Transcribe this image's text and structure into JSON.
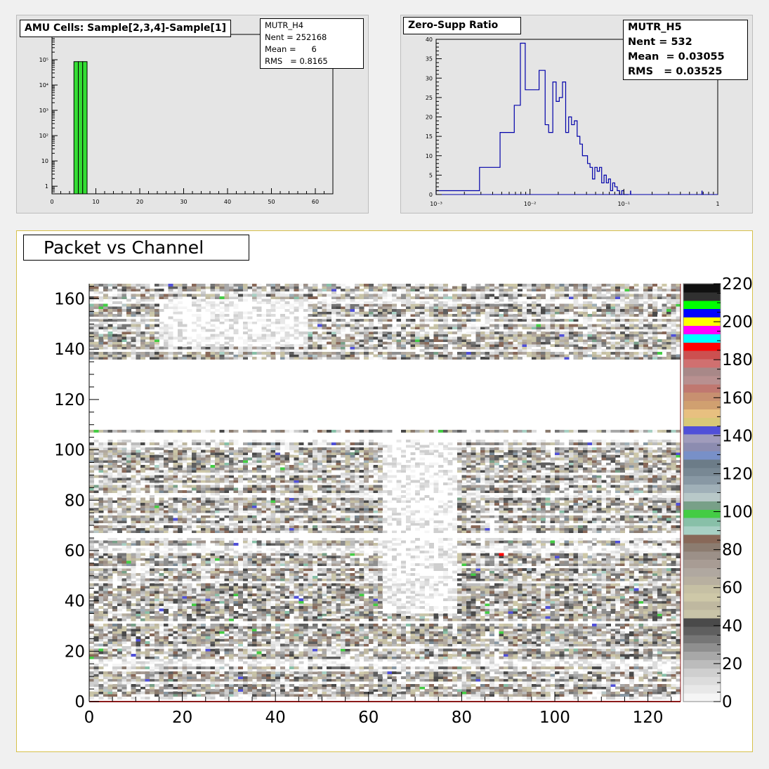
{
  "chart_data": [
    {
      "type": "bar",
      "title": "AMU Cells: Sample[2,3,4]-Sample[1]",
      "stats": {
        "name": "MUTR_H4",
        "nent_label": "Nent = 252168",
        "mean_label": "Mean =      6",
        "rms_label": "RMS   = 0.8165"
      },
      "xlim": [
        0,
        64
      ],
      "ylog": true,
      "ylim": [
        0.5,
        1000000
      ],
      "x_ticks": [
        0,
        10,
        20,
        30,
        40,
        50,
        60
      ],
      "x_tick_labels": [
        "0",
        "10",
        "20",
        "30",
        "40",
        "50",
        "60"
      ],
      "y_ticks": [
        1,
        10,
        100,
        1000,
        10000,
        100000
      ],
      "y_tick_labels": [
        "1",
        "10",
        "10²",
        "10³",
        "10⁴",
        "10⁵"
      ],
      "bins": [
        {
          "x": 5,
          "value": 84000
        },
        {
          "x": 6,
          "value": 84000
        },
        {
          "x": 7,
          "value": 84000
        }
      ],
      "bar_color": "#33dd33"
    },
    {
      "type": "line",
      "title": "Zero-Supp Ratio",
      "stats": {
        "name": "MUTR_H5",
        "nent_label": "Nent = 532",
        "mean_label": "Mean  = 0.03055",
        "rms_label": "RMS   = 0.03525"
      },
      "xlog": true,
      "xlim": [
        0.001,
        1
      ],
      "ylim": [
        0,
        40
      ],
      "x_tick_labels": [
        "10⁻³",
        "10⁻²",
        "10⁻¹",
        "1"
      ],
      "y_tick_labels": [
        "0",
        "5",
        "10",
        "15",
        "20",
        "25",
        "30",
        "35",
        "40"
      ],
      "line_color": "#0000aa",
      "step_edges": [
        0.001,
        0.0029,
        0.0048,
        0.0068,
        0.0079,
        0.0089,
        0.0125,
        0.0145,
        0.0158,
        0.0175,
        0.019,
        0.0205,
        0.0222,
        0.024,
        0.0258,
        0.0277,
        0.0297,
        0.0318,
        0.034,
        0.0362,
        0.0385,
        0.041,
        0.0436,
        0.0463,
        0.049,
        0.052,
        0.055,
        0.058,
        0.0615,
        0.065,
        0.0685,
        0.072,
        0.076,
        0.08,
        0.085,
        0.09,
        0.095,
        0.1,
        0.106,
        0.112
      ],
      "step_values": [
        1,
        7,
        16,
        23,
        39,
        27,
        32,
        18,
        16,
        29,
        24,
        25,
        29,
        16,
        20,
        18,
        19,
        15,
        13,
        10,
        10,
        8,
        7,
        4,
        7,
        6,
        7,
        3,
        5,
        3,
        4,
        1,
        3,
        2,
        1,
        0,
        1,
        0,
        0
      ],
      "isolated_bins": [
        {
          "x": 0.118,
          "value": 1
        },
        {
          "x": 0.68,
          "value": 1
        }
      ]
    },
    {
      "type": "heatmap",
      "title": "Packet vs Channel",
      "xlim": [
        0,
        127
      ],
      "ylim": [
        0,
        166
      ],
      "x_tick_labels": [
        "0",
        "20",
        "40",
        "60",
        "80",
        "100",
        "120"
      ],
      "y_tick_labels": [
        "0",
        "20",
        "40",
        "60",
        "80",
        "100",
        "120",
        "140",
        "160"
      ],
      "z_range": [
        0,
        220
      ],
      "z_tick_labels": [
        "0",
        "20",
        "40",
        "60",
        "80",
        "100",
        "120",
        "140",
        "160",
        "180",
        "200",
        "220"
      ],
      "palette": [
        "#f5f5f5",
        "#e8e8e8",
        "#dcdcdc",
        "#cfcfcf",
        "#bcbcbc",
        "#a8a8a8",
        "#8f8f8f",
        "#767676",
        "#5f5f5f",
        "#4a4a4a",
        "#c8c4a8",
        "#bfb8a0",
        "#cec8a8",
        "#c6c0a4",
        "#b8b0a0",
        "#b0a8a0",
        "#a89c94",
        "#9c9088",
        "#8c7c70",
        "#886858",
        "#a8d0c4",
        "#88c0a8",
        "#44cc44",
        "#78a088",
        "#b8c8c8",
        "#a0b0b8",
        "#8898a4",
        "#788894",
        "#6c7c88",
        "#7890c8",
        "#8c8cb0",
        "#a09cbc",
        "#5050d8",
        "#d8c878",
        "#e8c080",
        "#d0a070",
        "#c89070",
        "#c07870",
        "#b89090",
        "#a88888",
        "#d07070",
        "#cc5050",
        "#ff0000",
        "#00ffff",
        "#ff00ff",
        "#ffff00",
        "#0000ff",
        "#00ff00",
        "#303030",
        "#101010"
      ],
      "empty_bands": [
        [
          0,
          1
        ],
        [
          31,
          32
        ],
        [
          65,
          67
        ],
        [
          104,
          107
        ],
        [
          108,
          136
        ]
      ],
      "light_regions": [
        {
          "x": [
            63,
            79
          ],
          "y": [
            35,
            103
          ]
        },
        {
          "x": [
            15,
            47
          ],
          "y": [
            141,
            160
          ]
        }
      ],
      "seed": 7
    }
  ]
}
